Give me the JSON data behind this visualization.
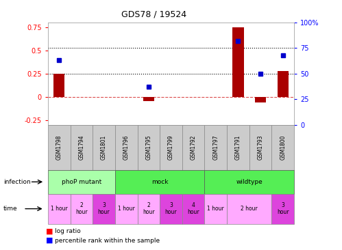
{
  "title": "GDS78 / 19524",
  "samples": [
    "GSM1798",
    "GSM1794",
    "GSM1801",
    "GSM1796",
    "GSM1795",
    "GSM1799",
    "GSM1792",
    "GSM1797",
    "GSM1791",
    "GSM1793",
    "GSM1800"
  ],
  "log_ratio": [
    0.25,
    0.0,
    0.0,
    0.0,
    -0.04,
    0.0,
    0.0,
    0.0,
    0.75,
    -0.06,
    0.28
  ],
  "percentile": [
    63,
    null,
    null,
    null,
    37,
    null,
    null,
    null,
    82,
    50,
    68
  ],
  "ylim_left": [
    -0.3,
    0.8
  ],
  "ylim_right": [
    0,
    100
  ],
  "yticks_left": [
    -0.25,
    0.0,
    0.25,
    0.5,
    0.75
  ],
  "yticks_right": [
    0,
    25,
    50,
    75,
    100
  ],
  "bar_color": "#aa0000",
  "dot_color": "#0000cc",
  "hline_zero_color": "#cc0000",
  "infection_groups": [
    {
      "label": "phoP mutant",
      "start": 0,
      "end": 3,
      "color": "#aaffaa"
    },
    {
      "label": "mock",
      "start": 3,
      "end": 7,
      "color": "#55ee55"
    },
    {
      "label": "wildtype",
      "start": 7,
      "end": 11,
      "color": "#55ee55"
    }
  ],
  "time_spans": [
    {
      "start": 0,
      "end": 1,
      "label": "1 hour",
      "highlight": false
    },
    {
      "start": 1,
      "end": 2,
      "label": "2\nhour",
      "highlight": false
    },
    {
      "start": 2,
      "end": 3,
      "label": "3\nhour",
      "highlight": true
    },
    {
      "start": 3,
      "end": 4,
      "label": "1 hour",
      "highlight": false
    },
    {
      "start": 4,
      "end": 5,
      "label": "2\nhour",
      "highlight": false
    },
    {
      "start": 5,
      "end": 6,
      "label": "3\nhour",
      "highlight": true
    },
    {
      "start": 6,
      "end": 7,
      "label": "4\nhour",
      "highlight": true
    },
    {
      "start": 7,
      "end": 8,
      "label": "1 hour",
      "highlight": false
    },
    {
      "start": 8,
      "end": 10,
      "label": "2 hour",
      "highlight": false
    },
    {
      "start": 10,
      "end": 11,
      "label": "3\nhour",
      "highlight": true
    }
  ],
  "time_normal_color": "#ffaaff",
  "time_highlight_color": "#dd44dd",
  "label_bg_color": "#cccccc",
  "label_edge_color": "#888888"
}
